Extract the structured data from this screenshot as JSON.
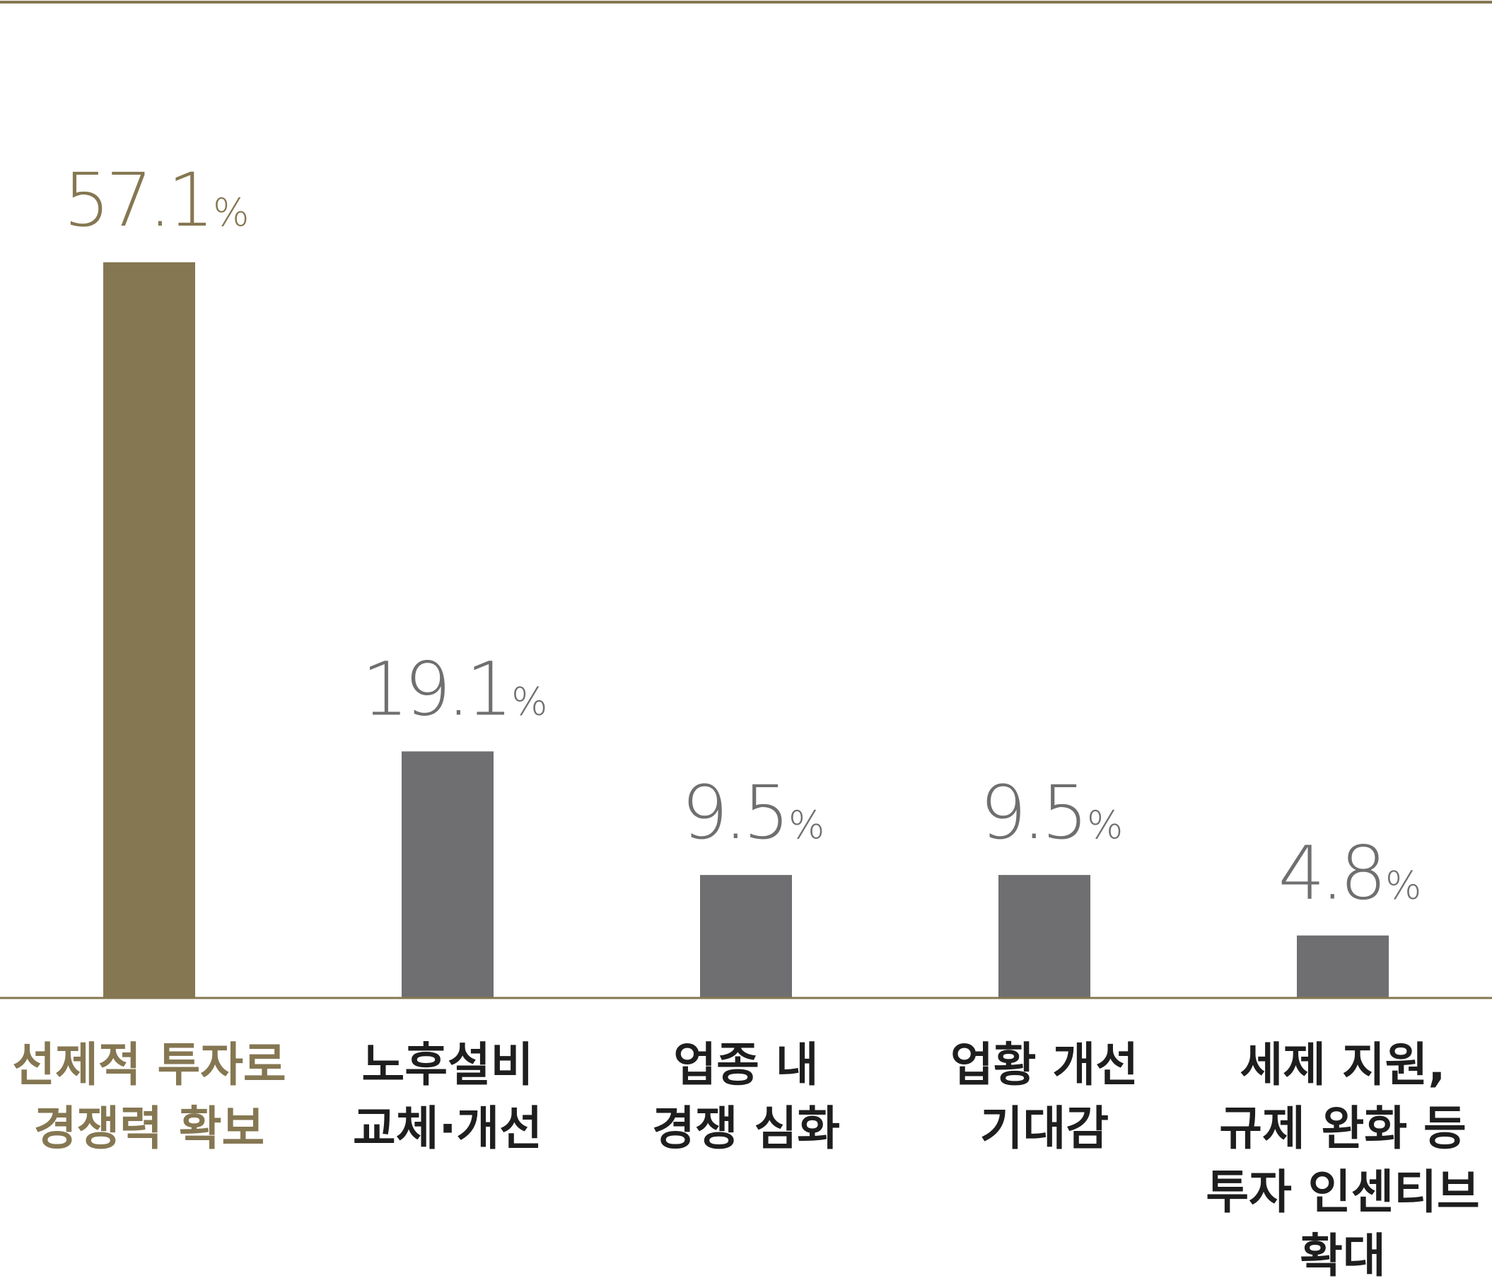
{
  "chart_data": {
    "type": "bar",
    "categories": [
      [
        "선제적 투자로",
        "경쟁력 확보"
      ],
      [
        "노후설비",
        "교체·개선"
      ],
      [
        "업종 내",
        "경쟁 심화"
      ],
      [
        "업황 개선",
        "기대감"
      ],
      [
        "세제 지원,",
        "규제 완화 등",
        "투자 인센티브",
        "확대"
      ]
    ],
    "values": [
      57.1,
      19.1,
      9.5,
      9.5,
      4.8
    ],
    "value_suffix": "%",
    "ylim": [
      0,
      70
    ],
    "highlight_index": 0,
    "colors": {
      "highlight": "#857752",
      "bar": "#6f6f71",
      "highlight_label": "#857752",
      "value_label": "#6f6f71",
      "category_label": "#1e1e1e",
      "rule": "#857752"
    }
  }
}
